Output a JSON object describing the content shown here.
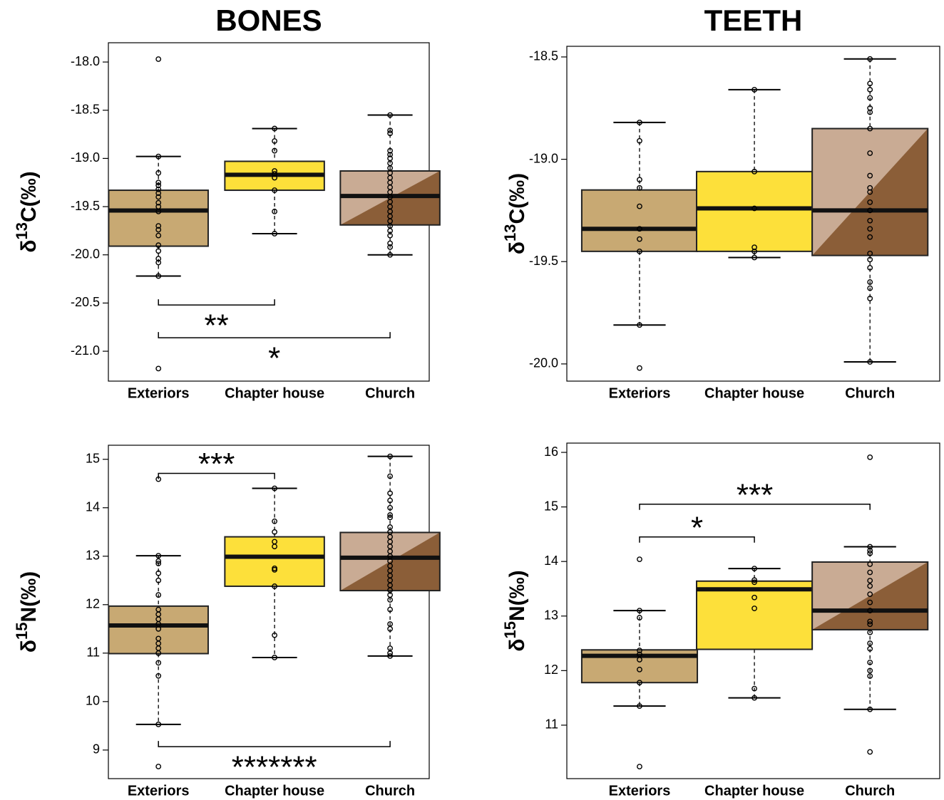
{
  "chart_data": [
    {
      "type": "box",
      "title": "BONES",
      "y_label": [
        "δ",
        "13",
        "C(‰)"
      ],
      "categories": [
        "Exteriors",
        "Chapter house",
        "Church"
      ],
      "colors": [
        "#c8a973",
        "#fde03a",
        [
          "#c9ab94",
          "#8b5e38"
        ]
      ],
      "ylim": [
        -21.31,
        -17.8
      ],
      "yticks": [
        {
          "value": -18,
          "label": "-18.0"
        },
        -18.5,
        {
          "value": -19,
          "label": "-19.0"
        },
        -19.5,
        {
          "value": -20,
          "label": "-20.0"
        },
        -20.5,
        {
          "value": -21,
          "label": "-21.0"
        }
      ],
      "boxes": [
        {
          "whisker_low": -20.22,
          "q1": -19.91,
          "median": -19.54,
          "q3": -19.33,
          "whisker_high": -18.98,
          "points": [
            -18.98,
            -19.15,
            -19.25,
            -19.28,
            -19.32,
            -19.36,
            -19.4,
            -19.46,
            -19.5,
            -19.55,
            -19.7,
            -19.74,
            -19.8,
            -19.9,
            -19.96,
            -20.04,
            -20.08,
            -20.22,
            -17.97,
            -21.18
          ]
        },
        {
          "whisker_low": -19.78,
          "q1": -19.33,
          "median": -19.17,
          "q3": -19.03,
          "whisker_high": -18.69,
          "points": [
            -18.69,
            -18.82,
            -18.92,
            -19.13,
            -19.16,
            -19.2,
            -19.33,
            -19.55,
            -19.78
          ]
        },
        {
          "whisker_low": -20.0,
          "q1": -19.69,
          "median": -19.39,
          "q3": -19.13,
          "whisker_high": -18.55,
          "points": [
            -18.55,
            -18.71,
            -18.74,
            -18.92,
            -18.96,
            -19.0,
            -19.05,
            -19.1,
            -19.15,
            -19.2,
            -19.25,
            -19.3,
            -19.35,
            -19.4,
            -19.45,
            -19.5,
            -19.55,
            -19.6,
            -19.65,
            -19.7,
            -19.75,
            -19.8,
            -19.88,
            -19.92,
            -20.0
          ]
        }
      ],
      "brackets": [
        {
          "between": [
            0,
            1
          ],
          "y": -20.52,
          "label": "**"
        },
        {
          "between": [
            0,
            2
          ],
          "y": -20.86,
          "label": "*"
        }
      ]
    },
    {
      "type": "box",
      "title": "TEETH",
      "y_label": [
        "δ",
        "13",
        "C(‰)"
      ],
      "categories": [
        "Exteriors",
        "Chapter house",
        "Church"
      ],
      "colors": [
        "#c8a973",
        "#fde03a",
        [
          "#c9ab94",
          "#8b5e38"
        ]
      ],
      "ylim": [
        -20.084,
        -18.448
      ],
      "yticks": [
        -18.5,
        {
          "value": -19,
          "label": "-19.0"
        },
        -19.5,
        {
          "value": -20,
          "label": "-20.0"
        }
      ],
      "boxes": [
        {
          "whisker_low": -19.81,
          "q1": -19.45,
          "median": -19.34,
          "q3": -19.15,
          "whisker_high": -18.82,
          "points": [
            -18.82,
            -18.91,
            -19.1,
            -19.14,
            -19.23,
            -19.34,
            -19.39,
            -19.45,
            -19.81,
            -20.02
          ]
        },
        {
          "whisker_low": -19.48,
          "q1": -19.45,
          "median": -19.24,
          "q3": -19.06,
          "whisker_high": -18.66,
          "points": [
            -18.66,
            -19.06,
            -19.24,
            -19.43,
            -19.45,
            -19.48
          ]
        },
        {
          "whisker_low": -19.99,
          "q1": -19.47,
          "median": -19.25,
          "q3": -18.85,
          "whisker_high": -18.51,
          "points": [
            -18.51,
            -18.63,
            -18.66,
            -18.7,
            -18.75,
            -18.77,
            -18.85,
            -18.97,
            -19.08,
            -19.14,
            -19.16,
            -19.21,
            -19.25,
            -19.3,
            -19.34,
            -19.38,
            -19.46,
            -19.49,
            -19.53,
            -19.6,
            -19.63,
            -19.68,
            -19.99
          ]
        }
      ],
      "brackets": []
    },
    {
      "type": "box",
      "y_label": [
        "δ",
        "15",
        "N(‰)"
      ],
      "categories": [
        "Exteriors",
        "Chapter house",
        "Church"
      ],
      "colors": [
        "#c8a973",
        "#fde03a",
        [
          "#c9ab94",
          "#8b5e38"
        ]
      ],
      "ylim": [
        8.41,
        15.29
      ],
      "yticks": [
        9,
        10,
        11,
        12,
        13,
        14,
        15
      ],
      "boxes": [
        {
          "whisker_low": 9.53,
          "q1": 10.99,
          "median": 11.57,
          "q3": 11.97,
          "whisker_high": 13.01,
          "points": [
            8.66,
            9.53,
            10.53,
            10.8,
            11.0,
            11.1,
            11.2,
            11.3,
            11.5,
            11.6,
            11.7,
            11.8,
            11.9,
            12.2,
            12.5,
            12.65,
            12.85,
            12.9,
            13.01,
            14.59
          ]
        },
        {
          "whisker_low": 10.91,
          "q1": 12.38,
          "median": 12.99,
          "q3": 13.4,
          "whisker_high": 14.4,
          "points": [
            10.91,
            11.37,
            12.38,
            12.72,
            12.75,
            13.2,
            13.3,
            13.5,
            13.72,
            14.4
          ]
        },
        {
          "whisker_low": 10.94,
          "q1": 12.29,
          "median": 12.97,
          "q3": 13.49,
          "whisker_high": 15.06,
          "points": [
            10.94,
            11.0,
            11.1,
            11.5,
            11.6,
            11.9,
            12.1,
            12.2,
            12.3,
            12.4,
            12.5,
            12.6,
            12.7,
            12.8,
            12.9,
            13.0,
            13.1,
            13.2,
            13.3,
            13.4,
            13.5,
            13.6,
            13.8,
            13.85,
            14.0,
            14.15,
            14.3,
            14.65,
            15.06
          ]
        }
      ],
      "brackets": [
        {
          "between": [
            0,
            1
          ],
          "y": 14.71,
          "label": "***"
        },
        {
          "between": [
            0,
            2
          ],
          "y": 9.07,
          "label": "*******"
        }
      ]
    },
    {
      "type": "box",
      "y_label": [
        "δ",
        "15",
        "N(‰)"
      ],
      "categories": [
        "Exteriors",
        "Chapter house",
        "Church"
      ],
      "colors": [
        "#c8a973",
        "#fde03a",
        [
          "#c9ab94",
          "#8b5e38"
        ]
      ],
      "ylim": [
        10.02,
        16.17
      ],
      "yticks": [
        11,
        12,
        13,
        14,
        15,
        16
      ],
      "boxes": [
        {
          "whisker_low": 11.35,
          "q1": 11.78,
          "median": 12.27,
          "q3": 12.38,
          "whisker_high": 13.1,
          "points": [
            10.24,
            11.35,
            11.78,
            12.02,
            12.2,
            12.3,
            12.37,
            12.97,
            13.1,
            14.04
          ]
        },
        {
          "whisker_low": 11.5,
          "q1": 12.39,
          "median": 13.49,
          "q3": 13.64,
          "whisker_high": 13.87,
          "points": [
            11.5,
            11.67,
            13.14,
            13.34,
            13.62,
            13.66,
            13.87
          ]
        },
        {
          "whisker_low": 11.29,
          "q1": 12.75,
          "median": 13.1,
          "q3": 13.99,
          "whisker_high": 14.27,
          "points": [
            10.51,
            11.29,
            11.9,
            12.0,
            12.15,
            12.4,
            12.5,
            12.7,
            12.85,
            12.9,
            13.1,
            13.25,
            13.4,
            13.55,
            13.65,
            13.8,
            13.95,
            14.15,
            14.2,
            14.27,
            15.91
          ]
        }
      ],
      "brackets": [
        {
          "between": [
            0,
            2
          ],
          "y": 15.05,
          "label": "***"
        },
        {
          "between": [
            0,
            1
          ],
          "y": 14.45,
          "label": "*"
        }
      ]
    }
  ]
}
